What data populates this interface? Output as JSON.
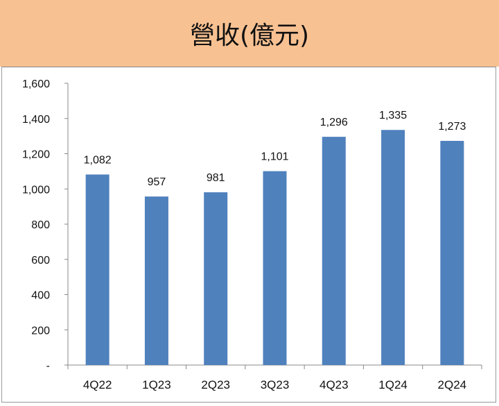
{
  "chart_data": {
    "type": "bar",
    "title": "營收(億元)",
    "categories": [
      "4Q22",
      "1Q23",
      "2Q23",
      "3Q23",
      "4Q23",
      "1Q24",
      "2Q24"
    ],
    "values": [
      1082,
      957,
      981,
      1101,
      1296,
      1335,
      1273
    ],
    "value_labels": [
      "1,082",
      "957",
      "981",
      "1,101",
      "1,296",
      "1,335",
      "1,273"
    ],
    "ylim": [
      0,
      1600
    ],
    "y_ticks": [
      0,
      200,
      400,
      600,
      800,
      1000,
      1200,
      1400,
      1600
    ],
    "y_tick_labels": [
      "-",
      "200",
      "400",
      "600",
      "800",
      "1,000",
      "1,200",
      "1,400",
      "1,600"
    ],
    "xlabel": "",
    "ylabel": "",
    "grid": false,
    "bar_color": "#4F81BD"
  }
}
